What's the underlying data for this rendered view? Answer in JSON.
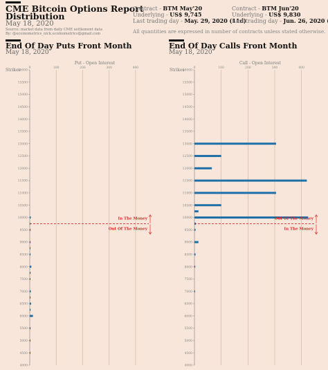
{
  "header": {
    "title_line1": "CME Bitcoin Options Report",
    "title_line2": "Distribution",
    "date": "May 18, 2020",
    "source": "Source: market data from daily CME settlement data",
    "by": "By: @ecoinometrics_nick.ecoinometrics@gmail.com",
    "note": "All quantities are expressed in number of contracts unless stated otherwise."
  },
  "contracts": [
    {
      "contract_label": "Contract - ",
      "contract_value": "BTM May'20",
      "underlying_label": "Underlying - ",
      "underlying_value": "US$ 9,745",
      "last_label": "Last trading day - ",
      "last_value": "May. 29, 2020 (11d)"
    },
    {
      "contract_label": "Contract - ",
      "contract_value": "BTM Jun'20",
      "underlying_label": "Underlying - ",
      "underlying_value": "US$ 9,830",
      "last_label": "Last trading day - ",
      "last_value": "Jun. 26, 2020 (39d)"
    }
  ],
  "panels": [
    {
      "title": "End Of Day Puts Front Month",
      "date": "May 18, 2020"
    },
    {
      "title": "End Of Day Calls Front Month",
      "date": "May 18, 2020"
    }
  ],
  "chart_data": [
    {
      "type": "bar",
      "orientation": "horizontal",
      "title": "End Of Day Puts Front Month",
      "xlabel": "Put - Open Interest",
      "ylabel": "Strikes",
      "xlim": [
        0,
        450
      ],
      "ylim": [
        4000,
        16000
      ],
      "x_ticks": [
        0,
        100,
        200,
        300,
        400
      ],
      "y_ticks": [
        16000,
        15500,
        15000,
        14500,
        14000,
        13500,
        13000,
        12500,
        12000,
        11500,
        11000,
        10500,
        10000,
        9500,
        9000,
        8500,
        8000,
        7500,
        7000,
        6500,
        6000,
        5500,
        5000,
        4500,
        4000
      ],
      "color": "#1f6fa8",
      "strikes": [
        10000,
        9750,
        9500,
        9000,
        8750,
        8500,
        8000,
        7750,
        7500,
        7000,
        6750,
        6500,
        6250,
        6000,
        5500,
        5000,
        4500
      ],
      "values": [
        4,
        2,
        3,
        3,
        2,
        3,
        6,
        3,
        2,
        4,
        3,
        5,
        3,
        12,
        3,
        2,
        2
      ],
      "underlying_line": 9745,
      "annotations": [
        "In The Money",
        "Out Of The Money"
      ],
      "annotation_color": "#d62728"
    },
    {
      "type": "bar",
      "orientation": "horizontal",
      "title": "End Of Day Calls Front Month",
      "xlabel": "Call - Open Interest",
      "ylabel": "Strikes",
      "xlim": [
        0,
        450
      ],
      "ylim": [
        4000,
        16000
      ],
      "x_ticks": [
        0,
        100,
        200,
        300,
        400
      ],
      "y_ticks": [
        16000,
        15500,
        15000,
        14500,
        14000,
        13500,
        13000,
        12500,
        12000,
        11500,
        11000,
        10500,
        10000,
        9500,
        9000,
        8500,
        8000,
        7500,
        7000,
        6500,
        6000,
        5500,
        5000,
        4500,
        4000
      ],
      "color": "#1f6fa8",
      "strikes": [
        13000,
        12500,
        12000,
        11500,
        11000,
        10500,
        10250,
        10000,
        9750,
        9500,
        9000,
        8500,
        8000,
        7000
      ],
      "values": [
        305,
        100,
        65,
        420,
        305,
        100,
        15,
        425,
        5,
        4,
        15,
        4,
        3,
        2
      ],
      "underlying_line": 9745,
      "annotations": [
        "Out Of The Money",
        "In The Money"
      ],
      "annotation_color": "#d62728"
    }
  ]
}
